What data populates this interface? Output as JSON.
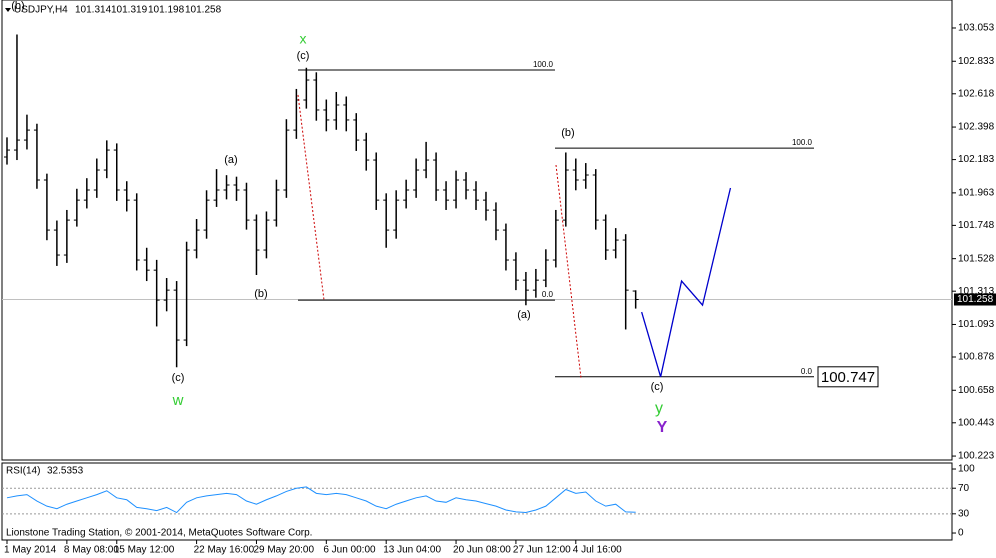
{
  "chart_data": [
    {
      "type": "ohlc",
      "title": "USDJPY,H4",
      "color": "#000000",
      "categories": [
        "1 May 2014",
        null,
        null,
        null,
        null,
        null,
        "8 May 08:00",
        null,
        null,
        null,
        null,
        "15 May 12:00",
        null,
        null,
        null,
        null,
        null,
        null,
        null,
        "22 May 16:00",
        null,
        null,
        null,
        null,
        null,
        "29 May 20:00",
        null,
        null,
        null,
        null,
        null,
        null,
        "6 Jun 00:00",
        null,
        null,
        null,
        null,
        null,
        "13 Jun 04:00",
        null,
        null,
        null,
        null,
        null,
        null,
        "20 Jun 08:00",
        null,
        null,
        null,
        null,
        null,
        "27 Jun 12:00",
        null,
        null,
        null,
        null,
        null,
        "4 Jul 16:00",
        null,
        null,
        null,
        null,
        null,
        null
      ],
      "open": [
        102.2,
        102.246,
        102.312,
        102.378,
        102.048,
        101.717,
        101.552,
        101.783,
        101.915,
        101.982,
        102.114,
        102.246,
        101.982,
        101.915,
        101.519,
        101.452,
        101.254,
        101.32,
        100.99,
        101.585,
        101.717,
        101.915,
        101.982,
        102.015,
        101.982,
        101.783,
        101.585,
        101.783,
        101.982,
        102.378,
        102.577,
        102.709,
        102.511,
        102.445,
        102.544,
        102.445,
        102.312,
        102.18,
        101.915,
        101.717,
        101.915,
        101.982,
        102.114,
        102.18,
        101.982,
        101.915,
        102.048,
        101.982,
        101.915,
        101.849,
        101.717,
        101.519,
        101.386,
        101.32,
        101.386,
        101.519,
        101.783,
        102.114,
        102.048,
        102.081,
        101.783,
        101.585,
        101.651,
        101.314
      ],
      "high": [
        102.33,
        103.01,
        102.48,
        102.42,
        102.09,
        101.78,
        101.85,
        101.99,
        102.06,
        102.19,
        102.31,
        102.29,
        102.04,
        101.96,
        101.6,
        101.52,
        101.4,
        101.38,
        101.64,
        101.79,
        101.98,
        102.12,
        102.08,
        102.07,
        102.03,
        101.82,
        101.84,
        102.05,
        102.45,
        102.65,
        102.79,
        102.76,
        102.58,
        102.63,
        102.6,
        102.49,
        102.36,
        102.23,
        101.96,
        101.98,
        102.05,
        102.19,
        102.3,
        102.23,
        102.04,
        102.11,
        102.1,
        102.04,
        101.97,
        101.9,
        101.76,
        101.57,
        101.44,
        101.46,
        101.59,
        101.85,
        102.23,
        102.19,
        102.16,
        102.12,
        101.82,
        101.73,
        101.69,
        101.319
      ],
      "low": [
        102.15,
        102.18,
        102.25,
        101.99,
        101.65,
        101.48,
        101.5,
        101.74,
        101.86,
        101.93,
        102.06,
        101.91,
        101.84,
        101.45,
        101.38,
        101.08,
        101.18,
        100.81,
        100.95,
        101.53,
        101.66,
        101.87,
        101.92,
        101.91,
        101.72,
        101.42,
        101.53,
        101.74,
        101.93,
        102.32,
        102.52,
        102.44,
        102.37,
        102.38,
        102.37,
        102.24,
        102.11,
        101.85,
        101.6,
        101.66,
        101.86,
        101.93,
        102.06,
        101.91,
        101.85,
        101.86,
        101.92,
        101.85,
        101.78,
        101.65,
        101.45,
        101.32,
        101.22,
        101.27,
        101.34,
        101.47,
        101.74,
        101.98,
        101.99,
        101.72,
        101.52,
        101.53,
        101.06,
        101.198
      ],
      "close": [
        102.246,
        102.312,
        102.378,
        102.048,
        101.717,
        101.552,
        101.783,
        101.915,
        101.982,
        102.114,
        102.246,
        101.982,
        101.915,
        101.519,
        101.452,
        101.254,
        101.32,
        100.99,
        101.585,
        101.717,
        101.915,
        101.982,
        102.015,
        101.982,
        101.783,
        101.585,
        101.783,
        101.982,
        102.378,
        102.577,
        102.709,
        102.511,
        102.445,
        102.544,
        102.445,
        102.312,
        102.18,
        101.915,
        101.717,
        101.915,
        101.982,
        102.114,
        102.18,
        101.982,
        101.915,
        102.048,
        101.982,
        101.915,
        101.849,
        101.717,
        101.519,
        101.386,
        101.32,
        101.386,
        101.519,
        101.783,
        102.114,
        102.048,
        102.081,
        101.783,
        101.585,
        101.651,
        101.32,
        101.258
      ],
      "xlim": [
        -0.5,
        94.7
      ],
      "ylim": [
        100.197,
        103.238
      ],
      "yticks": [
        103.053,
        102.833,
        102.618,
        102.398,
        102.183,
        101.963,
        101.748,
        101.528,
        101.313,
        101.093,
        100.878,
        100.658,
        100.443,
        100.223
      ],
      "fibo": [
        {
          "levels": [
            {
              "level": {
                "value": 100,
                "label": "100.0"
              },
              "price": 102.775
            },
            {
              "level": {
                "value": 0,
                "label": "0.0"
              },
              "price": 101.254
            }
          ]
        },
        {
          "levels": [
            {
              "level": {
                "value": 100,
                "label": "100.0"
              },
              "price": 102.259
            },
            {
              "level": {
                "value": 0,
                "label": "0.0"
              },
              "price": 100.747
            }
          ]
        }
      ],
      "projection": {
        "color": "#0000cc",
        "x": [
          63.6,
          65.5,
          67.6,
          69.7,
          72.5
        ],
        "values": [
          101.175,
          100.747,
          101.38,
          101.221,
          101.995
        ]
      },
      "annotations": [
        {
          "text": "(b)",
          "color": "#000000"
        },
        {
          "text": "x",
          "color": "#33cc33"
        },
        {
          "text": "(c)",
          "color": "#000000"
        },
        {
          "text": "(a)",
          "color": "#000000"
        },
        {
          "text": "(b)",
          "color": "#000000"
        },
        {
          "text": "(c)",
          "color": "#000000"
        },
        {
          "text": "w",
          "color": "#33cc33"
        },
        {
          "text": "(b)",
          "color": "#000000"
        },
        {
          "text": "(a)",
          "color": "#000000"
        },
        {
          "text": "(c)",
          "color": "#000000"
        },
        {
          "text": "y",
          "color": "#33cc33"
        },
        {
          "text": "Y",
          "color": "#8822cc"
        }
      ],
      "footer": "Lionstone Trading Station, © 2001-2014, MetaQuotes Software Corp."
    },
    {
      "type": "line",
      "title": "RSI(14)",
      "color": "#1e90ff",
      "values": [
        55,
        58,
        60,
        50,
        42,
        38,
        45,
        50,
        55,
        60,
        66,
        55,
        52,
        40,
        38,
        35,
        40,
        32,
        48,
        55,
        58,
        60,
        62,
        60,
        50,
        45,
        52,
        58,
        65,
        70,
        72,
        62,
        60,
        62,
        60,
        55,
        50,
        42,
        38,
        45,
        50,
        55,
        58,
        50,
        48,
        55,
        52,
        50,
        46,
        42,
        36,
        33,
        32,
        36,
        42,
        55,
        68,
        62,
        64,
        50,
        42,
        45,
        33,
        32.5353
      ],
      "xlim": [
        -0.5,
        94.7
      ],
      "ylim": [
        -10.9,
        109.4
      ],
      "yticks": [
        100,
        70,
        30,
        0
      ],
      "levels": [
        70,
        30
      ]
    }
  ]
}
